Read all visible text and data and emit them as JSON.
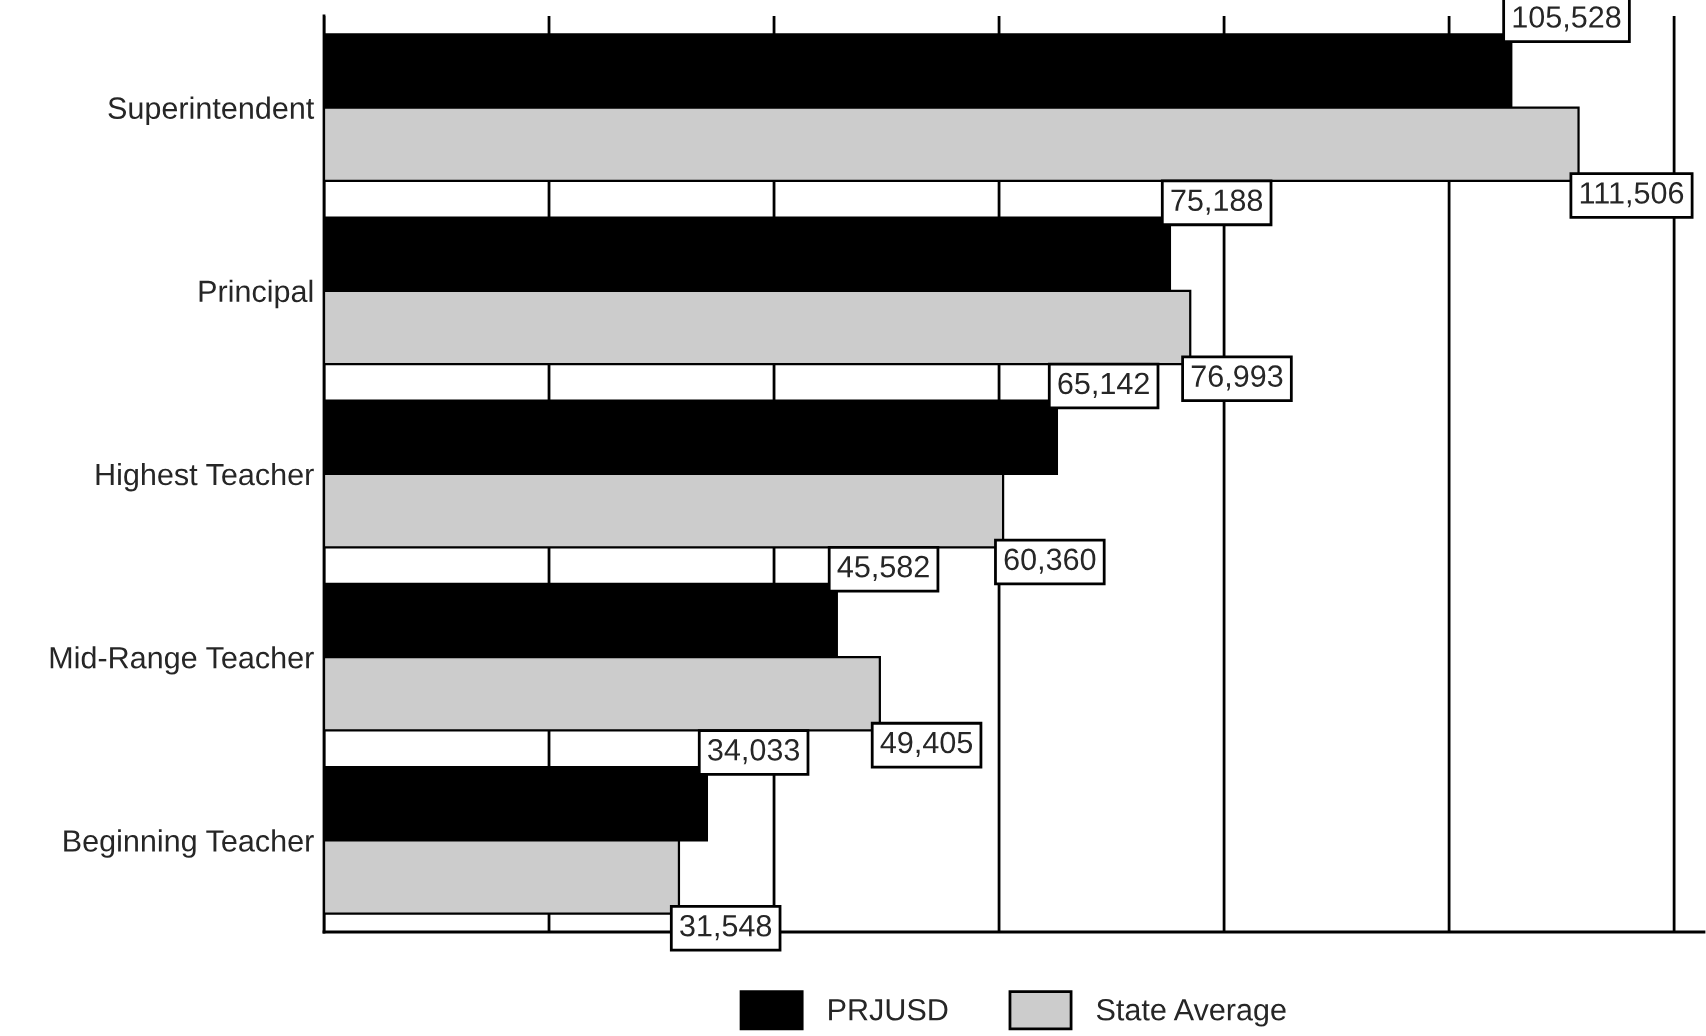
{
  "chart_data": {
    "type": "bar",
    "orientation": "horizontal",
    "categories": [
      "Superintendent",
      "Principal",
      "Highest Teacher",
      "Mid-Range Teacher",
      "Beginning Teacher"
    ],
    "series": [
      {
        "name": "PRJUSD",
        "color": "#000000",
        "values": [
          105528,
          75188,
          65142,
          45582,
          34033
        ],
        "value_labels": [
          "105,528",
          "75,188",
          "65,142",
          "45,582",
          "34,033"
        ]
      },
      {
        "name": "State Average",
        "color": "#cccccc",
        "values": [
          111506,
          76993,
          60360,
          49405,
          31548
        ],
        "value_labels": [
          "111,506",
          "76,993",
          "60,360",
          "49,405",
          "31,548"
        ]
      }
    ],
    "tick_labels": "y",
    "grid": "x",
    "legend": "bottom"
  }
}
